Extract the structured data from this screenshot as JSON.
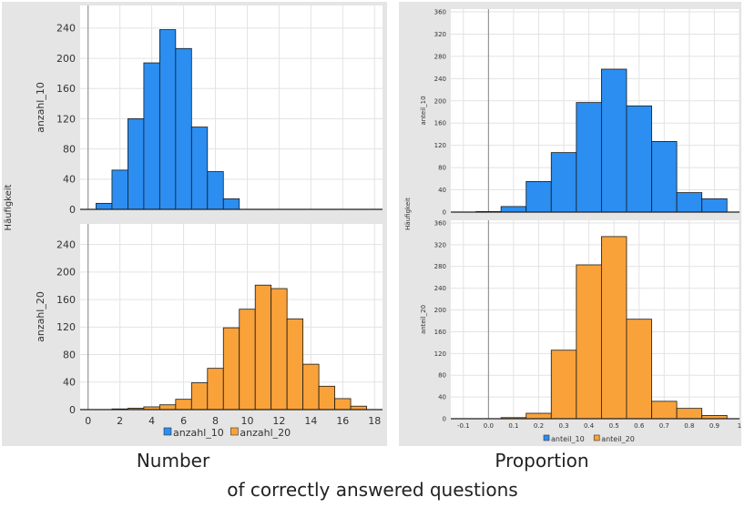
{
  "captions": {
    "left": "Number",
    "right": "Proportion",
    "bottom": "of correctly answered questions"
  },
  "colors": {
    "blue": "#2b8ef0",
    "orange": "#f9a23a",
    "panel_bg": "#e5e5e5",
    "grid": "#e3e3e3"
  },
  "chart_data": [
    {
      "type": "bar",
      "panel": "left",
      "shared_ylabel": "Häufigkeit",
      "legend": [
        "anzahl_10",
        "anzahl_20"
      ],
      "legend_placement": "bottom",
      "x_ticks": [
        "0",
        "2",
        "4",
        "6",
        "8",
        "10",
        "12",
        "14",
        "16",
        "18"
      ],
      "xlim": [
        -0.5,
        18.5
      ],
      "bin_width": 1,
      "subplots": [
        {
          "ylabel": "anzahl_10",
          "ylim": [
            0,
            270
          ],
          "y_ticks": [
            "0",
            "40",
            "80",
            "120",
            "160",
            "200",
            "240"
          ],
          "series": [
            {
              "name": "anzahl_10",
              "color": "#2b8ef0",
              "x": [
                1,
                2,
                3,
                4,
                5,
                6,
                7,
                8,
                9
              ],
              "values": [
                8,
                52,
                120,
                194,
                238,
                213,
                109,
                50,
                14
              ]
            }
          ]
        },
        {
          "ylabel": "anzahl_20",
          "ylim": [
            0,
            270
          ],
          "y_ticks": [
            "0",
            "40",
            "80",
            "120",
            "160",
            "200",
            "240"
          ],
          "series": [
            {
              "name": "anzahl_20",
              "color": "#f9a23a",
              "x": [
                2,
                3,
                4,
                5,
                6,
                7,
                8,
                9,
                10,
                11,
                12,
                13,
                14,
                15,
                16,
                17
              ],
              "values": [
                1,
                2,
                4,
                7,
                15,
                39,
                60,
                119,
                146,
                181,
                176,
                132,
                66,
                34,
                16,
                5
              ]
            }
          ]
        }
      ]
    },
    {
      "type": "bar",
      "panel": "right",
      "shared_ylabel": "Häufigkeit",
      "legend": [
        "anteil_10",
        "anteil_20"
      ],
      "legend_placement": "bottom",
      "x_ticks": [
        "-0.1",
        "0.0",
        "0.1",
        "0.2",
        "0.3",
        "0.4",
        "0.5",
        "0.6",
        "0.7",
        "0.8",
        "0.9",
        "1"
      ],
      "xlim": [
        -0.15,
        1.0
      ],
      "bin_width": 0.1,
      "subplots": [
        {
          "ylabel": "anteil_10",
          "ylim": [
            0,
            365
          ],
          "y_ticks": [
            "0",
            "40",
            "80",
            "120",
            "160",
            "200",
            "240",
            "280",
            "320",
            "360"
          ],
          "series": [
            {
              "name": "anteil_10",
              "color": "#2b8ef0",
              "x": [
                0.0,
                0.1,
                0.2,
                0.3,
                0.4,
                0.5,
                0.6,
                0.7,
                0.8,
                0.9
              ],
              "values": [
                1,
                10,
                55,
                107,
                197,
                257,
                191,
                127,
                35,
                24
              ]
            }
          ]
        },
        {
          "ylabel": "anteil_20",
          "ylim": [
            0,
            365
          ],
          "y_ticks": [
            "0",
            "40",
            "80",
            "120",
            "160",
            "200",
            "240",
            "280",
            "320",
            "360"
          ],
          "series": [
            {
              "name": "anteil_20",
              "color": "#f9a23a",
              "x": [
                0.1,
                0.2,
                0.3,
                0.4,
                0.5,
                0.6,
                0.7,
                0.8,
                0.9
              ],
              "values": [
                2,
                10,
                126,
                283,
                335,
                183,
                32,
                19,
                6
              ]
            }
          ]
        }
      ]
    }
  ]
}
